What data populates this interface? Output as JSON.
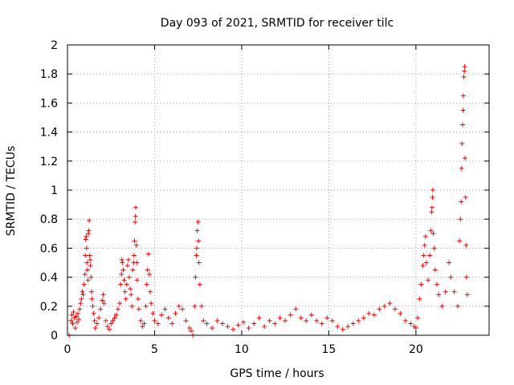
{
  "chart_data": {
    "type": "scatter",
    "title": "Day 093 of 2021, SRMTID for receiver tilc",
    "xlabel": "GPS time / hours",
    "ylabel": "SRMTID / TECUs",
    "xlim": [
      0,
      24.2
    ],
    "ylim": [
      0,
      2
    ],
    "xticks": [
      0,
      5,
      10,
      15,
      20
    ],
    "xtick_labels": [
      "0",
      "5",
      "10",
      "15",
      "20"
    ],
    "yticks": [
      0,
      0.2,
      0.4,
      0.6,
      0.8,
      1,
      1.2,
      1.4,
      1.6,
      1.8,
      2
    ],
    "ytick_labels": [
      "0",
      "0.2",
      "0.4",
      "0.6",
      "0.8",
      "1",
      "1.2",
      "1.4",
      "1.6",
      "1.8",
      "2"
    ],
    "grid": true,
    "marker": "+",
    "marker_color": "#ff0000",
    "series": [
      {
        "name": "SRMTID",
        "points": [
          [
            0.1,
            0.0
          ],
          [
            0.2,
            0.1
          ],
          [
            0.25,
            0.14
          ],
          [
            0.3,
            0.08
          ],
          [
            0.35,
            0.16
          ],
          [
            0.4,
            0.12
          ],
          [
            0.45,
            0.05
          ],
          [
            0.5,
            0.13
          ],
          [
            0.55,
            0.09
          ],
          [
            0.6,
            0.15
          ],
          [
            0.65,
            0.11
          ],
          [
            0.7,
            0.18
          ],
          [
            0.75,
            0.22
          ],
          [
            0.8,
            0.25
          ],
          [
            0.85,
            0.3
          ],
          [
            0.9,
            0.28
          ],
          [
            0.95,
            0.35
          ],
          [
            1.0,
            0.42
          ],
          [
            1.02,
            0.55
          ],
          [
            1.05,
            0.66
          ],
          [
            1.08,
            0.68
          ],
          [
            1.1,
            0.6
          ],
          [
            1.12,
            0.5
          ],
          [
            1.15,
            0.45
          ],
          [
            1.18,
            0.38
          ],
          [
            1.2,
            0.7
          ],
          [
            1.22,
            0.72
          ],
          [
            1.25,
            0.79
          ],
          [
            1.28,
            0.55
          ],
          [
            1.3,
            0.52
          ],
          [
            1.32,
            0.48
          ],
          [
            1.35,
            0.4
          ],
          [
            1.38,
            0.3
          ],
          [
            1.4,
            0.25
          ],
          [
            1.45,
            0.2
          ],
          [
            1.5,
            0.15
          ],
          [
            1.55,
            0.1
          ],
          [
            1.6,
            0.05
          ],
          [
            1.7,
            0.08
          ],
          [
            1.8,
            0.12
          ],
          [
            1.9,
            0.18
          ],
          [
            2.0,
            0.24
          ],
          [
            2.05,
            0.28
          ],
          [
            2.1,
            0.22
          ],
          [
            2.2,
            0.1
          ],
          [
            2.3,
            0.06
          ],
          [
            2.4,
            0.04
          ],
          [
            2.5,
            0.08
          ],
          [
            2.6,
            0.1
          ],
          [
            2.7,
            0.12
          ],
          [
            2.8,
            0.14
          ],
          [
            2.9,
            0.18
          ],
          [
            3.0,
            0.22
          ],
          [
            3.05,
            0.35
          ],
          [
            3.1,
            0.42
          ],
          [
            3.12,
            0.52
          ],
          [
            3.15,
            0.5
          ],
          [
            3.2,
            0.45
          ],
          [
            3.25,
            0.38
          ],
          [
            3.3,
            0.3
          ],
          [
            3.35,
            0.25
          ],
          [
            3.4,
            0.35
          ],
          [
            3.45,
            0.48
          ],
          [
            3.5,
            0.52
          ],
          [
            3.55,
            0.4
          ],
          [
            3.6,
            0.32
          ],
          [
            3.65,
            0.28
          ],
          [
            3.7,
            0.2
          ],
          [
            3.75,
            0.45
          ],
          [
            3.8,
            0.5
          ],
          [
            3.82,
            0.55
          ],
          [
            3.85,
            0.65
          ],
          [
            3.88,
            0.78
          ],
          [
            3.9,
            0.82
          ],
          [
            3.92,
            0.88
          ],
          [
            3.95,
            0.62
          ],
          [
            3.98,
            0.5
          ],
          [
            4.0,
            0.38
          ],
          [
            4.05,
            0.25
          ],
          [
            4.1,
            0.18
          ],
          [
            4.2,
            0.1
          ],
          [
            4.3,
            0.06
          ],
          [
            4.4,
            0.08
          ],
          [
            4.5,
            0.2
          ],
          [
            4.55,
            0.35
          ],
          [
            4.6,
            0.45
          ],
          [
            4.65,
            0.56
          ],
          [
            4.7,
            0.42
          ],
          [
            4.75,
            0.3
          ],
          [
            4.8,
            0.22
          ],
          [
            4.9,
            0.15
          ],
          [
            5.0,
            0.1
          ],
          [
            5.2,
            0.08
          ],
          [
            5.4,
            0.14
          ],
          [
            5.6,
            0.18
          ],
          [
            5.8,
            0.12
          ],
          [
            6.0,
            0.08
          ],
          [
            6.2,
            0.15
          ],
          [
            6.4,
            0.2
          ],
          [
            6.6,
            0.18
          ],
          [
            6.8,
            0.1
          ],
          [
            7.0,
            0.05
          ],
          [
            7.1,
            0.03
          ],
          [
            7.2,
            0.0
          ],
          [
            7.3,
            0.2
          ],
          [
            7.35,
            0.4
          ],
          [
            7.4,
            0.55
          ],
          [
            7.42,
            0.6
          ],
          [
            7.45,
            0.72
          ],
          [
            7.5,
            0.78
          ],
          [
            7.52,
            0.65
          ],
          [
            7.55,
            0.5
          ],
          [
            7.6,
            0.35
          ],
          [
            7.7,
            0.2
          ],
          [
            7.8,
            0.1
          ],
          [
            8.0,
            0.08
          ],
          [
            8.3,
            0.05
          ],
          [
            8.6,
            0.1
          ],
          [
            8.9,
            0.08
          ],
          [
            9.2,
            0.06
          ],
          [
            9.5,
            0.04
          ],
          [
            9.8,
            0.07
          ],
          [
            10.1,
            0.09
          ],
          [
            10.4,
            0.05
          ],
          [
            10.7,
            0.08
          ],
          [
            11.0,
            0.12
          ],
          [
            11.3,
            0.06
          ],
          [
            11.6,
            0.1
          ],
          [
            11.9,
            0.08
          ],
          [
            12.2,
            0.12
          ],
          [
            12.5,
            0.1
          ],
          [
            12.8,
            0.14
          ],
          [
            13.1,
            0.18
          ],
          [
            13.4,
            0.12
          ],
          [
            13.7,
            0.1
          ],
          [
            14.0,
            0.14
          ],
          [
            14.3,
            0.1
          ],
          [
            14.6,
            0.08
          ],
          [
            14.9,
            0.12
          ],
          [
            15.2,
            0.1
          ],
          [
            15.5,
            0.06
          ],
          [
            15.8,
            0.04
          ],
          [
            16.1,
            0.06
          ],
          [
            16.4,
            0.08
          ],
          [
            16.7,
            0.1
          ],
          [
            17.0,
            0.12
          ],
          [
            17.3,
            0.15
          ],
          [
            17.6,
            0.14
          ],
          [
            17.9,
            0.18
          ],
          [
            18.2,
            0.2
          ],
          [
            18.5,
            0.22
          ],
          [
            18.8,
            0.18
          ],
          [
            19.1,
            0.15
          ],
          [
            19.4,
            0.1
          ],
          [
            19.7,
            0.08
          ],
          [
            19.9,
            0.06
          ],
          [
            20.0,
            0.05
          ],
          [
            20.1,
            0.12
          ],
          [
            20.2,
            0.25
          ],
          [
            20.3,
            0.35
          ],
          [
            20.4,
            0.48
          ],
          [
            20.45,
            0.55
          ],
          [
            20.5,
            0.62
          ],
          [
            20.55,
            0.68
          ],
          [
            20.6,
            0.5
          ],
          [
            20.7,
            0.38
          ],
          [
            20.8,
            0.55
          ],
          [
            20.85,
            0.72
          ],
          [
            20.9,
            0.85
          ],
          [
            20.92,
            0.88
          ],
          [
            20.95,
            0.95
          ],
          [
            20.97,
            1.0
          ],
          [
            21.0,
            0.7
          ],
          [
            21.05,
            0.6
          ],
          [
            21.1,
            0.45
          ],
          [
            21.2,
            0.35
          ],
          [
            21.3,
            0.28
          ],
          [
            21.5,
            0.2
          ],
          [
            21.7,
            0.3
          ],
          [
            21.9,
            0.5
          ],
          [
            22.0,
            0.4
          ],
          [
            22.2,
            0.3
          ],
          [
            22.4,
            0.2
          ],
          [
            22.5,
            0.65
          ],
          [
            22.55,
            0.8
          ],
          [
            22.6,
            0.92
          ],
          [
            22.62,
            1.15
          ],
          [
            22.65,
            1.32
          ],
          [
            22.68,
            1.45
          ],
          [
            22.7,
            1.55
          ],
          [
            22.72,
            1.65
          ],
          [
            22.75,
            1.78
          ],
          [
            22.78,
            1.82
          ],
          [
            22.8,
            1.85
          ],
          [
            22.82,
            1.22
          ],
          [
            22.85,
            0.95
          ],
          [
            22.88,
            0.62
          ],
          [
            22.9,
            0.4
          ],
          [
            22.95,
            0.28
          ]
        ]
      }
    ]
  }
}
